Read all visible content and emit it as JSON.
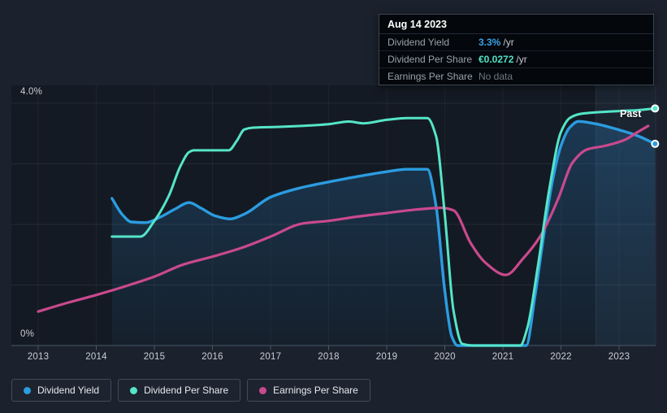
{
  "tooltip": {
    "date": "Aug 14 2023",
    "rows": [
      {
        "label": "Dividend Yield",
        "value": "3.3%",
        "suffix": "/yr",
        "color": "#3aa3e8",
        "no_data": false
      },
      {
        "label": "Dividend Per Share",
        "value": "€0.0272",
        "suffix": "/yr",
        "color": "#4fe3c6",
        "no_data": false
      },
      {
        "label": "Earnings Per Share",
        "value": "No data",
        "suffix": "",
        "color": "#6e7781",
        "no_data": true
      }
    ]
  },
  "axis": {
    "y_top_label": "4.0%",
    "y_bottom_label": "0%",
    "x_labels": [
      "2013",
      "2014",
      "2015",
      "2016",
      "2017",
      "2018",
      "2019",
      "2020",
      "2021",
      "2022",
      "2023"
    ]
  },
  "past_label": "Past",
  "legend": [
    {
      "label": "Dividend Yield",
      "color": "#2b9ce0"
    },
    {
      "label": "Dividend Per Share",
      "color": "#55e5c8"
    },
    {
      "label": "Earnings Per Share",
      "color": "#c9498e"
    }
  ],
  "colors": {
    "background": "#1b222d",
    "grid": "rgba(255,255,255,0.075)",
    "axis_line": "#3a4450",
    "dividend_yield": "#2b9ce0",
    "dividend_per_share": "#55e5c8",
    "earnings_per_share": "#c9498e",
    "area_fill_top": "rgba(43,125,190,0.30)",
    "area_fill_bottom": "rgba(43,125,190,0.06)",
    "past_highlight": "rgba(125,180,235,0.07)"
  },
  "chart_data": {
    "type": "line",
    "title": "Dividend history (yield, dividend per share, earnings per share)",
    "x_range": [
      2012.55,
      2023.75
    ],
    "x_tick_years": [
      2013,
      2014,
      2015,
      2016,
      2017,
      2018,
      2019,
      2020,
      2021,
      2022,
      2023
    ],
    "y_axis": {
      "unit": "percent",
      "min": 0,
      "max": 4,
      "top_label": "4.0%",
      "bottom_label": "0%",
      "gridlines_percent": [
        1,
        2,
        3,
        4
      ]
    },
    "secondary_scale": {
      "unit": "eur_per_share",
      "min": 0,
      "max": 0.0278,
      "note": "per-share series share the 0 baseline; €0.0272 at Aug 14 2023"
    },
    "highlight_region": {
      "x_start_year": 2022.6,
      "x_end_year": 2023.63,
      "label": "Past"
    },
    "legend_position": "bottom-left",
    "series": [
      {
        "name": "Dividend Yield",
        "unit": "percent",
        "color": "#2b9ce0",
        "area": true,
        "end_marker": true,
        "points": [
          [
            2014.27,
            2.43
          ],
          [
            2014.45,
            2.16
          ],
          [
            2014.6,
            2.04
          ],
          [
            2014.85,
            2.03
          ],
          [
            2015.1,
            2.12
          ],
          [
            2015.35,
            2.25
          ],
          [
            2015.6,
            2.36
          ],
          [
            2015.8,
            2.27
          ],
          [
            2016.05,
            2.14
          ],
          [
            2016.3,
            2.09
          ],
          [
            2016.55,
            2.17
          ],
          [
            2017.0,
            2.45
          ],
          [
            2017.5,
            2.6
          ],
          [
            2018.0,
            2.7
          ],
          [
            2018.5,
            2.79
          ],
          [
            2019.0,
            2.87
          ],
          [
            2019.35,
            2.91
          ],
          [
            2019.7,
            2.91
          ],
          [
            2019.85,
            2.3
          ],
          [
            2020.0,
            0.9
          ],
          [
            2020.12,
            0.15
          ],
          [
            2020.22,
            0
          ],
          [
            2021.4,
            0
          ],
          [
            2021.55,
            0.8
          ],
          [
            2021.7,
            1.8
          ],
          [
            2021.85,
            2.7
          ],
          [
            2022.0,
            3.3
          ],
          [
            2022.15,
            3.6
          ],
          [
            2022.3,
            3.7
          ],
          [
            2022.6,
            3.66
          ],
          [
            2023.0,
            3.56
          ],
          [
            2023.3,
            3.47
          ],
          [
            2023.62,
            3.33
          ]
        ]
      },
      {
        "name": "Dividend Per Share",
        "unit": "eur_per_share",
        "color": "#55e5c8",
        "area": false,
        "end_marker": true,
        "points": [
          [
            2014.27,
            0.0125
          ],
          [
            2014.76,
            0.0125
          ],
          [
            2015.0,
            0.0143
          ],
          [
            2015.25,
            0.0172
          ],
          [
            2015.45,
            0.0206
          ],
          [
            2015.6,
            0.0222
          ],
          [
            2015.68,
            0.0224
          ],
          [
            2016.28,
            0.0224
          ],
          [
            2016.42,
            0.0235
          ],
          [
            2016.55,
            0.0248
          ],
          [
            2016.7,
            0.025
          ],
          [
            2017.2,
            0.0251
          ],
          [
            2018.0,
            0.0254
          ],
          [
            2018.35,
            0.0257
          ],
          [
            2018.6,
            0.0255
          ],
          [
            2019.0,
            0.0259
          ],
          [
            2019.35,
            0.0261
          ],
          [
            2019.7,
            0.0261
          ],
          [
            2019.85,
            0.024
          ],
          [
            2020.0,
            0.015
          ],
          [
            2020.15,
            0.004
          ],
          [
            2020.3,
            0.0002
          ],
          [
            2020.5,
            0
          ],
          [
            2021.3,
            0
          ],
          [
            2021.42,
            0.002
          ],
          [
            2021.6,
            0.009
          ],
          [
            2021.8,
            0.018
          ],
          [
            2022.0,
            0.0245
          ],
          [
            2022.15,
            0.0261
          ],
          [
            2022.35,
            0.0266
          ],
          [
            2022.7,
            0.0268
          ],
          [
            2023.0,
            0.0269
          ],
          [
            2023.3,
            0.027
          ],
          [
            2023.62,
            0.0272
          ]
        ]
      },
      {
        "name": "Earnings Per Share",
        "unit": "eur_per_share",
        "color": "#c9498e",
        "area": false,
        "end_marker": false,
        "points": [
          [
            2013.0,
            0.0039
          ],
          [
            2013.5,
            0.0049
          ],
          [
            2014.0,
            0.0058
          ],
          [
            2014.5,
            0.0068
          ],
          [
            2015.0,
            0.0079
          ],
          [
            2015.5,
            0.0093
          ],
          [
            2016.0,
            0.0102
          ],
          [
            2016.5,
            0.0112
          ],
          [
            2017.0,
            0.0125
          ],
          [
            2017.55,
            0.014
          ],
          [
            2018.0,
            0.0143
          ],
          [
            2018.5,
            0.0148
          ],
          [
            2019.0,
            0.0152
          ],
          [
            2019.5,
            0.0156
          ],
          [
            2019.95,
            0.0158
          ],
          [
            2020.15,
            0.0155
          ],
          [
            2020.45,
            0.0117
          ],
          [
            2020.7,
            0.0095
          ],
          [
            2021.05,
            0.0081
          ],
          [
            2021.35,
            0.01
          ],
          [
            2021.65,
            0.0126
          ],
          [
            2021.95,
            0.0168
          ],
          [
            2022.2,
            0.021
          ],
          [
            2022.45,
            0.0225
          ],
          [
            2022.75,
            0.0229
          ],
          [
            2023.1,
            0.0236
          ],
          [
            2023.3,
            0.0244
          ],
          [
            2023.5,
            0.0252
          ]
        ]
      }
    ]
  }
}
